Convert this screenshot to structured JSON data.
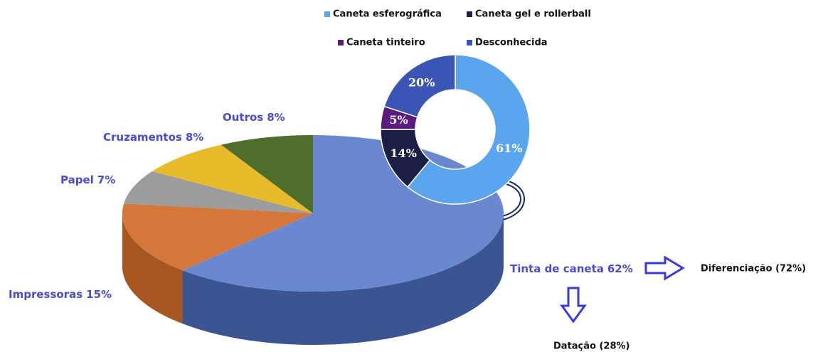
{
  "chart_data": [
    {
      "type": "pie3d",
      "categories": [
        "Tinta de caneta",
        "Impressoras",
        "Papel",
        "Cruzamentos",
        "Outros"
      ],
      "values": [
        62,
        15,
        7,
        8,
        8
      ],
      "value_labels": [
        "62%",
        "15%",
        "7%",
        "8%",
        "8%"
      ],
      "colors": [
        "#6a88d0",
        "#d5763a",
        "#9c9c9c",
        "#e8bb2a",
        "#4f6d2b"
      ],
      "side_colors": [
        "#3b5592",
        "#a8561f",
        "#707070",
        "#b8901a",
        "#35491c"
      ],
      "annotations": [
        "Diferenciação (72%)",
        "Datação (28%)"
      ]
    },
    {
      "type": "donut",
      "categories": [
        "Caneta esferográfica",
        "Caneta gel e rollerball",
        "Caneta tinteiro",
        "Desconhecida"
      ],
      "values": [
        61,
        14,
        5,
        20
      ],
      "value_labels": [
        "61%",
        "14%",
        "5%",
        "20%"
      ],
      "colors": [
        "#5aa5ee",
        "#1c1f45",
        "#5b1a80",
        "#3a55b5"
      ]
    }
  ]
}
